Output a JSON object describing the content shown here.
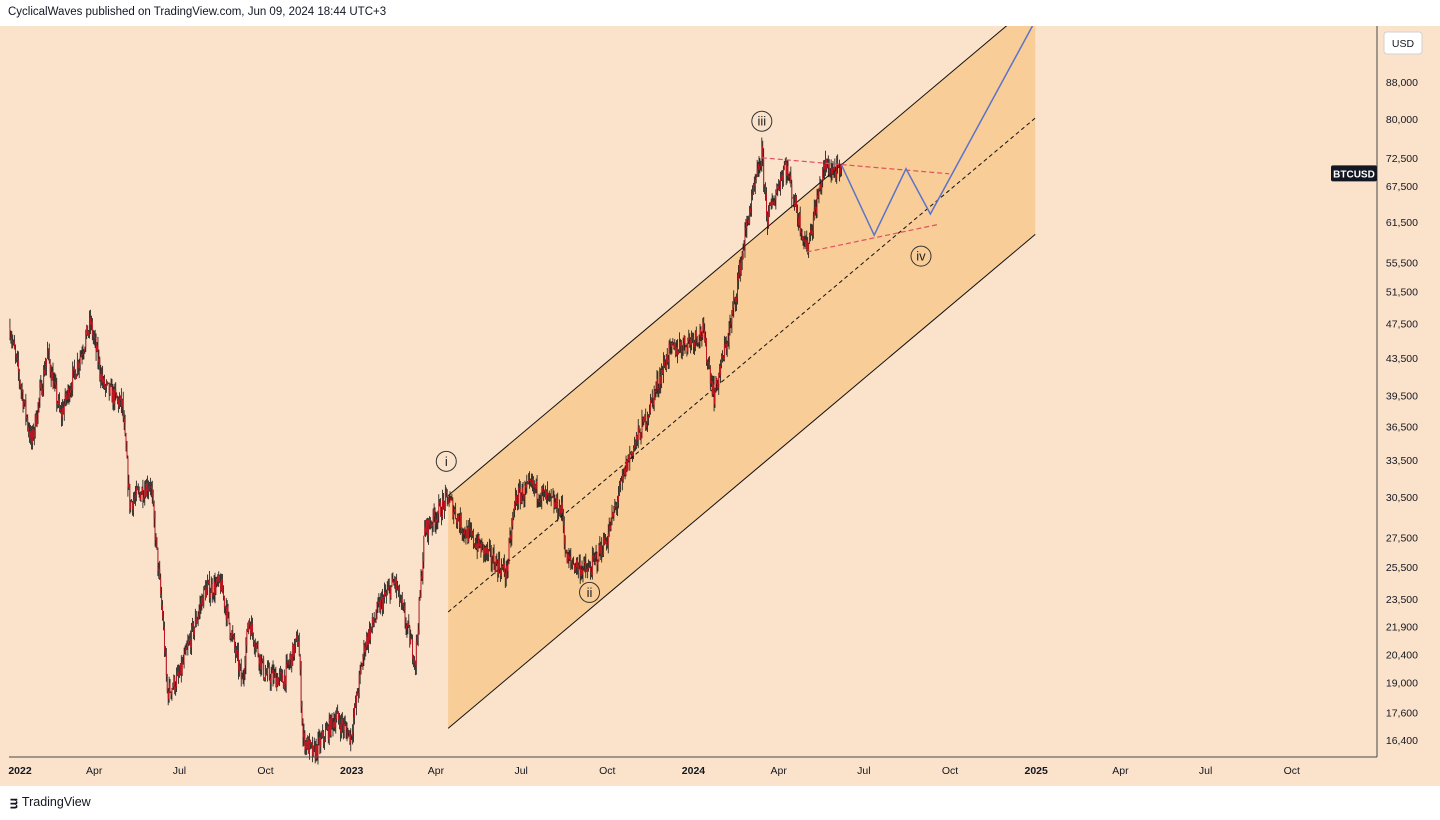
{
  "header": {
    "attribution": "CyclicalWaves published on TradingView.com, Jun 09, 2024 18:44 UTC+3"
  },
  "footer": {
    "brand": "TradingView",
    "logo_icon": "tradingview-logo-icon"
  },
  "colors": {
    "background": "#fbe3cb",
    "channel_fill": "#f8c98e",
    "candle": "#c8101c",
    "wick": "#111111",
    "projection": "#5b73c9",
    "triangle": "#e05060",
    "channel_line": "#111111",
    "axis_text": "#131722"
  },
  "chart_data": {
    "type": "candlestick",
    "symbol": "BTCUSD",
    "currency": "USD",
    "current_price": 69500,
    "y_scale": "log",
    "ylim": [
      15700,
      101500
    ],
    "xlim": [
      "2021-12-31",
      "2025-12-31"
    ],
    "grid": false,
    "y_ticks": [
      16400,
      17600,
      19000,
      20400,
      21900,
      23500,
      25500,
      27500,
      30500,
      33500,
      36500,
      39500,
      43500,
      47500,
      51500,
      55500,
      61500,
      67500,
      72500,
      80000,
      88000
    ],
    "y_tick_labels": [
      "16,400",
      "17,600",
      "19,000",
      "20,400",
      "21,900",
      "23,500",
      "25,500",
      "27,500",
      "30,500",
      "33,500",
      "36,500",
      "39,500",
      "43,500",
      "47,500",
      "51,500",
      "55,500",
      "61,500",
      "67,500",
      "72,500",
      "80,000",
      "88,000"
    ],
    "x_ticks": [
      {
        "date": "2022-01-01",
        "label": "2022",
        "bold": true
      },
      {
        "date": "2022-04-01",
        "label": "Apr"
      },
      {
        "date": "2022-07-01",
        "label": "Jul"
      },
      {
        "date": "2022-10-01",
        "label": "Oct"
      },
      {
        "date": "2023-01-01",
        "label": "2023",
        "bold": true
      },
      {
        "date": "2023-04-01",
        "label": "Apr"
      },
      {
        "date": "2023-07-01",
        "label": "Jul"
      },
      {
        "date": "2023-10-01",
        "label": "Oct"
      },
      {
        "date": "2024-01-01",
        "label": "2024",
        "bold": true
      },
      {
        "date": "2024-04-01",
        "label": "Apr"
      },
      {
        "date": "2024-07-01",
        "label": "Jul"
      },
      {
        "date": "2024-10-01",
        "label": "Oct"
      },
      {
        "date": "2025-01-01",
        "label": "2025",
        "bold": true
      },
      {
        "date": "2025-04-01",
        "label": "Apr"
      },
      {
        "date": "2025-07-01",
        "label": "Jul"
      },
      {
        "date": "2025-10-01",
        "label": "Oct"
      }
    ],
    "price_path": [
      [
        "2022-01-01",
        47000
      ],
      [
        "2022-01-10",
        41800
      ],
      [
        "2022-01-24",
        35000
      ],
      [
        "2022-02-10",
        44000
      ],
      [
        "2022-02-24",
        37500
      ],
      [
        "2022-03-28",
        47500
      ],
      [
        "2022-04-11",
        40500
      ],
      [
        "2022-05-01",
        38500
      ],
      [
        "2022-05-09",
        30000
      ],
      [
        "2022-05-31",
        31700
      ],
      [
        "2022-06-13",
        22500
      ],
      [
        "2022-06-18",
        18500
      ],
      [
        "2022-07-01",
        19300
      ],
      [
        "2022-07-28",
        24000
      ],
      [
        "2022-08-14",
        24400
      ],
      [
        "2022-09-06",
        19000
      ],
      [
        "2022-09-13",
        22300
      ],
      [
        "2022-09-30",
        19400
      ],
      [
        "2022-10-20",
        19100
      ],
      [
        "2022-11-05",
        21300
      ],
      [
        "2022-11-10",
        16500
      ],
      [
        "2022-11-21",
        15800
      ],
      [
        "2022-12-15",
        17400
      ],
      [
        "2022-12-31",
        16550
      ],
      [
        "2023-01-15",
        20900
      ],
      [
        "2023-01-31",
        23100
      ],
      [
        "2023-02-16",
        24600
      ],
      [
        "2023-03-10",
        20100
      ],
      [
        "2023-03-20",
        28000
      ],
      [
        "2023-04-14",
        30400
      ],
      [
        "2023-05-01",
        28000
      ],
      [
        "2023-06-15",
        25100
      ],
      [
        "2023-06-25",
        30400
      ],
      [
        "2023-07-13",
        31300
      ],
      [
        "2023-08-14",
        29400
      ],
      [
        "2023-08-18",
        26000
      ],
      [
        "2023-09-11",
        25200
      ],
      [
        "2023-10-01",
        27500
      ],
      [
        "2023-10-23",
        33500
      ],
      [
        "2023-11-10",
        37000
      ],
      [
        "2023-12-05",
        44000
      ],
      [
        "2024-01-11",
        46500
      ],
      [
        "2024-01-23",
        39500
      ],
      [
        "2024-02-10",
        47500
      ],
      [
        "2024-02-28",
        62000
      ],
      [
        "2024-03-14",
        73000
      ],
      [
        "2024-03-20",
        62000
      ],
      [
        "2024-04-08",
        71500
      ],
      [
        "2024-04-20",
        63500
      ],
      [
        "2024-05-01",
        57500
      ],
      [
        "2024-05-20",
        71000
      ],
      [
        "2024-06-07",
        69500
      ]
    ],
    "channel": {
      "start": [
        "2023-04-14",
        30600
      ],
      "end": [
        "2024-12-31",
        108000
      ],
      "height_factor": 0.552
    },
    "triangle": {
      "upper": [
        [
          "2024-03-14",
          72500
        ],
        [
          "2024-09-30",
          69600
        ]
      ],
      "lower": [
        [
          "2024-05-01",
          57000
        ],
        [
          "2024-09-20",
          61200
        ]
      ]
    },
    "projection": [
      [
        "2024-06-07",
        71200
      ],
      [
        "2024-07-12",
        59500
      ],
      [
        "2024-08-15",
        70500
      ],
      [
        "2024-09-10",
        62800
      ],
      [
        "2024-12-28",
        101500
      ]
    ],
    "wave_labels": [
      {
        "label": "i",
        "date": "2023-04-12",
        "price": 33400
      },
      {
        "label": "ii",
        "date": "2023-09-12",
        "price": 23900
      },
      {
        "label": "iii",
        "date": "2024-03-14",
        "price": 79600
      },
      {
        "label": "iv",
        "date": "2024-08-31",
        "price": 56400
      }
    ]
  }
}
